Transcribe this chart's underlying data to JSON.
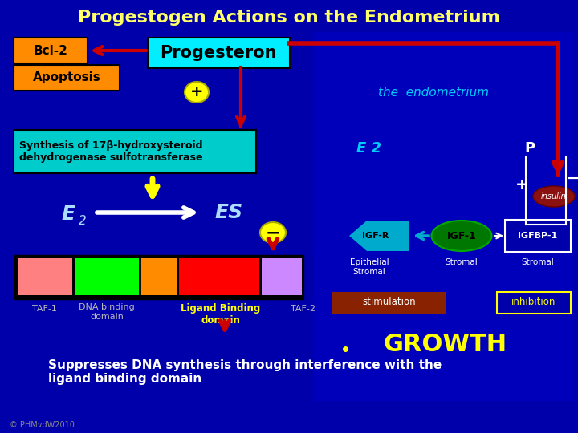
{
  "title": "Progestogen Actions on the Endometrium",
  "title_color": "#FFFF66",
  "bg_color": "#0000AA",
  "bcl2_label": "Bcl-2",
  "bcl2_bg": "#FF8C00",
  "apoptosis_label": "Apoptosis",
  "apoptosis_bg": "#FF8C00",
  "progesteron_label": "Progesteron",
  "progesteron_bg": "#00EEFF",
  "synthesis_label": "Synthesis of 17β-hydroxysteroid\ndehydrogenase sulfotransferase",
  "synthesis_bg": "#00CCCC",
  "arrow_color": "#CC0000",
  "bar_colors": [
    "#FF8080",
    "#00FF00",
    "#FF8C00",
    "#FF0000",
    "#CC88FF"
  ],
  "suppress_text": "Suppresses DNA synthesis through interference with the\nligand binding domain",
  "endometrium_text": "the  endometrium",
  "e2_right": "E 2",
  "p_label": "P",
  "igf_r": "IGF-R",
  "igf_1": "IGF-1",
  "igfbp_1": "IGFBP-1",
  "epithelial_stromal": "Epithelial\nStromal",
  "stromal1": "Stromal",
  "stromal2": "Stromal",
  "stimulation": "stimulation",
  "inhibition": "inhibition",
  "growth": "GROWTH",
  "copyright": "© PHMvdW2010",
  "insulin_label": "insulin"
}
